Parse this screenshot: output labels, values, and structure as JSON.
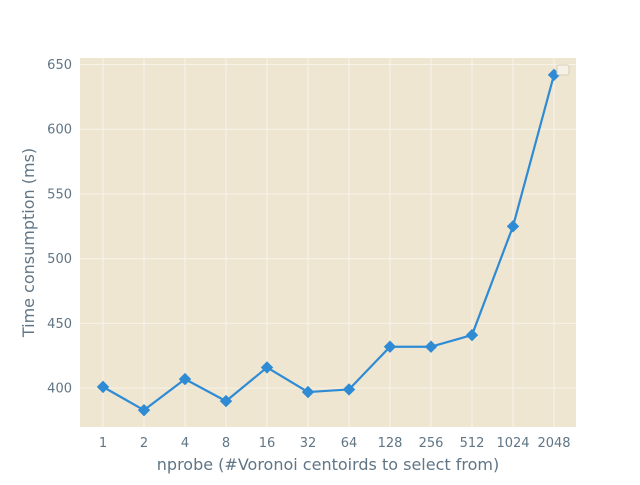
{
  "chart_data": {
    "type": "line",
    "title": "",
    "xlabel": "nprobe (#Voronoi centoirds to select from)",
    "ylabel": "Time consumption (ms)",
    "x_tick_labels": [
      "1",
      "2",
      "4",
      "8",
      "16",
      "32",
      "64",
      "128",
      "256",
      "512",
      "1024",
      "2048"
    ],
    "y_ticks": [
      400,
      450,
      500,
      550,
      600,
      650
    ],
    "ylim": [
      370,
      655
    ],
    "grid": true,
    "legend": "top-right (empty)",
    "series": [
      {
        "values": [
          401,
          383,
          407,
          390,
          416,
          397,
          399,
          432,
          432,
          441,
          525,
          642
        ],
        "marker": "diamond"
      }
    ],
    "colors": {
      "background": "#EFE6D2",
      "grid": "#F8F3E9",
      "line": "#2E8BD4",
      "text": "#607585"
    }
  }
}
